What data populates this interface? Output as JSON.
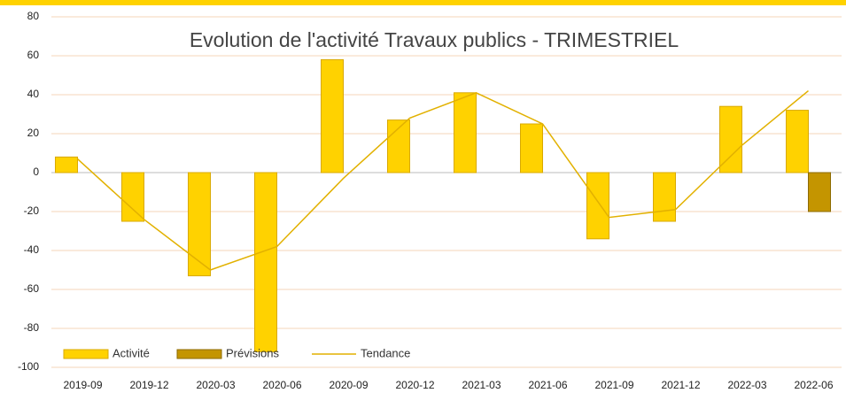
{
  "chart_data": {
    "type": "bar",
    "title": "Evolution de l'activité Travaux publics - TRIMESTRIEL",
    "categories": [
      "2019-09",
      "2019-12",
      "2020-03",
      "2020-06",
      "2020-09",
      "2020-12",
      "2021-03",
      "2021-06",
      "2021-09",
      "2021-12",
      "2022-03",
      "2022-06"
    ],
    "series": [
      {
        "name": "Activité",
        "type": "bar",
        "color": "#ffd200",
        "values": [
          8,
          -25,
          -53,
          -92,
          58,
          27,
          41,
          25,
          -34,
          -25,
          34,
          32
        ]
      },
      {
        "name": "Prévisions",
        "type": "bar",
        "color": "#c49500",
        "values": [
          null,
          null,
          null,
          null,
          null,
          null,
          null,
          null,
          null,
          null,
          null,
          -20
        ]
      },
      {
        "name": "Tendance",
        "type": "line",
        "color": "#e2b100",
        "values": [
          7,
          -24,
          -50,
          -38,
          -3,
          28,
          41,
          25,
          -23,
          -19,
          14,
          42
        ]
      }
    ],
    "ylim": [
      -100,
      80
    ],
    "yticks": [
      -100,
      -80,
      -60,
      -40,
      -20,
      0,
      20,
      40,
      60,
      80
    ],
    "grid": true
  }
}
